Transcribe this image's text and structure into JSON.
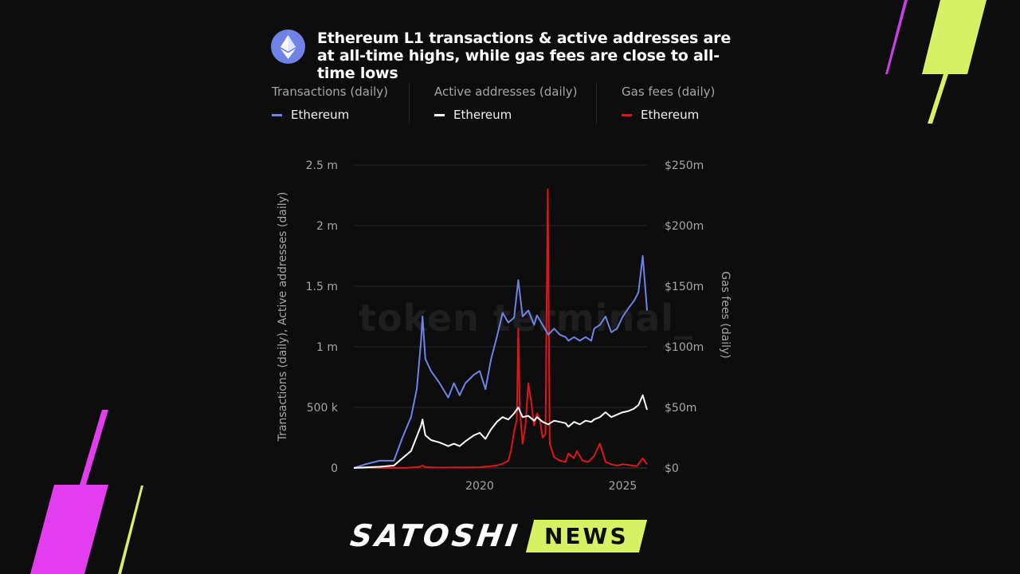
{
  "header": {
    "title": "Ethereum L1 transactions & active addresses are at all-time highs, while gas fees are close to all-time lows",
    "logo_icon": "ethereum-diamond-icon"
  },
  "legend": [
    {
      "title": "Transactions (daily)",
      "label": "Ethereum",
      "color": "#6f82e6"
    },
    {
      "title": "Active addresses (daily)",
      "label": "Ethereum",
      "color": "#ffffff"
    },
    {
      "title": "Gas fees (daily)",
      "label": "Ethereum",
      "color": "#e0151b"
    }
  ],
  "watermark": "token terminal_",
  "branding": {
    "name": "SATOSHI",
    "tag": "NEWS",
    "accent": "#d6f264",
    "secondary": "#e43df0"
  },
  "chart_data": {
    "type": "line",
    "title": "Ethereum L1 transactions & active addresses are at all-time highs, while gas fees are close to all-time lows",
    "xlabel": "",
    "ylabel": "Transactions (daily), Active addresses (daily)",
    "y2label": "Gas fees (daily)",
    "x_ticks": [
      "2020",
      "2025"
    ],
    "x_tick_values": [
      2020,
      2025
    ],
    "xlim": [
      2015.6,
      2025.85
    ],
    "y_ticks": [
      "0",
      "500 k",
      "1 m",
      "1.5 m",
      "2 m",
      "2.5 m"
    ],
    "y_tick_values": [
      0,
      500000,
      1000000,
      1500000,
      2000000,
      2500000
    ],
    "ylim": [
      0,
      2500000
    ],
    "y2_ticks": [
      "$0",
      "$50m",
      "$100m",
      "$150m",
      "$200m",
      "$250m"
    ],
    "y2_tick_values": [
      0,
      50000000,
      100000000,
      150000000,
      200000000,
      250000000
    ],
    "y2lim": [
      0,
      250000000
    ],
    "grid": true,
    "series": [
      {
        "name": "Transactions (daily)",
        "axis": "left",
        "color": "#6f82e6",
        "x": [
          2015.6,
          2016.0,
          2016.5,
          2017.0,
          2017.3,
          2017.6,
          2017.8,
          2017.95,
          2018.0,
          2018.1,
          2018.3,
          2018.6,
          2018.9,
          2019.1,
          2019.3,
          2019.5,
          2019.8,
          2020.0,
          2020.2,
          2020.4,
          2020.6,
          2020.8,
          2021.0,
          2021.2,
          2021.35,
          2021.5,
          2021.7,
          2021.9,
          2022.0,
          2022.2,
          2022.4,
          2022.6,
          2022.8,
          2023.0,
          2023.1,
          2023.3,
          2023.5,
          2023.7,
          2023.9,
          2024.0,
          2024.2,
          2024.4,
          2024.6,
          2024.8,
          2025.0,
          2025.2,
          2025.4,
          2025.55,
          2025.7,
          2025.85
        ],
        "y": [
          0,
          30000,
          60000,
          60000,
          250000,
          420000,
          650000,
          1050000,
          1250000,
          900000,
          800000,
          700000,
          580000,
          700000,
          600000,
          700000,
          770000,
          800000,
          650000,
          900000,
          1080000,
          1280000,
          1200000,
          1240000,
          1550000,
          1250000,
          1300000,
          1180000,
          1260000,
          1180000,
          1100000,
          1150000,
          1100000,
          1080000,
          1050000,
          1080000,
          1050000,
          1080000,
          1050000,
          1150000,
          1180000,
          1250000,
          1120000,
          1150000,
          1250000,
          1320000,
          1380000,
          1450000,
          1750000,
          1300000
        ]
      },
      {
        "name": "Active addresses (daily)",
        "axis": "left",
        "color": "#ffffff",
        "x": [
          2015.6,
          2016.0,
          2016.5,
          2017.0,
          2017.3,
          2017.6,
          2017.8,
          2017.95,
          2018.0,
          2018.1,
          2018.3,
          2018.6,
          2018.9,
          2019.1,
          2019.3,
          2019.5,
          2019.8,
          2020.0,
          2020.2,
          2020.4,
          2020.6,
          2020.8,
          2021.0,
          2021.2,
          2021.35,
          2021.5,
          2021.7,
          2021.9,
          2022.0,
          2022.2,
          2022.4,
          2022.6,
          2022.8,
          2023.0,
          2023.1,
          2023.3,
          2023.5,
          2023.7,
          2023.9,
          2024.0,
          2024.2,
          2024.4,
          2024.6,
          2024.8,
          2025.0,
          2025.2,
          2025.4,
          2025.55,
          2025.7,
          2025.85
        ],
        "y": [
          0,
          5000,
          10000,
          20000,
          80000,
          140000,
          260000,
          350000,
          400000,
          270000,
          230000,
          210000,
          180000,
          200000,
          180000,
          220000,
          270000,
          290000,
          240000,
          320000,
          380000,
          420000,
          400000,
          450000,
          500000,
          420000,
          430000,
          390000,
          420000,
          380000,
          360000,
          390000,
          380000,
          370000,
          340000,
          380000,
          360000,
          390000,
          380000,
          400000,
          420000,
          460000,
          420000,
          440000,
          460000,
          470000,
          490000,
          520000,
          600000,
          480000
        ]
      },
      {
        "name": "Gas fees (daily)",
        "axis": "right",
        "color": "#e0151b",
        "x": [
          2015.6,
          2016.5,
          2017.0,
          2017.5,
          2017.9,
          2018.0,
          2018.1,
          2018.3,
          2018.6,
          2019.0,
          2019.3,
          2019.6,
          2020.0,
          2020.2,
          2020.4,
          2020.6,
          2020.8,
          2021.0,
          2021.1,
          2021.2,
          2021.3,
          2021.35,
          2021.4,
          2021.5,
          2021.6,
          2021.7,
          2021.8,
          2021.9,
          2022.0,
          2022.1,
          2022.2,
          2022.3,
          2022.38,
          2022.45,
          2022.6,
          2022.8,
          2023.0,
          2023.1,
          2023.3,
          2023.4,
          2023.6,
          2023.8,
          2024.0,
          2024.2,
          2024.4,
          2024.6,
          2024.8,
          2025.0,
          2025.2,
          2025.5,
          2025.7,
          2025.85
        ],
        "y": [
          0,
          0,
          0,
          100000,
          1000000,
          2000000,
          800000,
          600000,
          300000,
          400000,
          500000,
          400000,
          600000,
          1200000,
          1500000,
          2200000,
          3500000,
          6000000,
          15000000,
          30000000,
          40000000,
          115000000,
          50000000,
          20000000,
          35000000,
          70000000,
          55000000,
          35000000,
          45000000,
          40000000,
          25000000,
          28000000,
          230000000,
          20000000,
          9000000,
          6000000,
          5000000,
          12000000,
          8000000,
          14000000,
          6000000,
          5000000,
          10000000,
          20000000,
          5000000,
          3000000,
          2000000,
          3000000,
          2500000,
          1500000,
          8000000,
          3000000
        ]
      }
    ]
  }
}
